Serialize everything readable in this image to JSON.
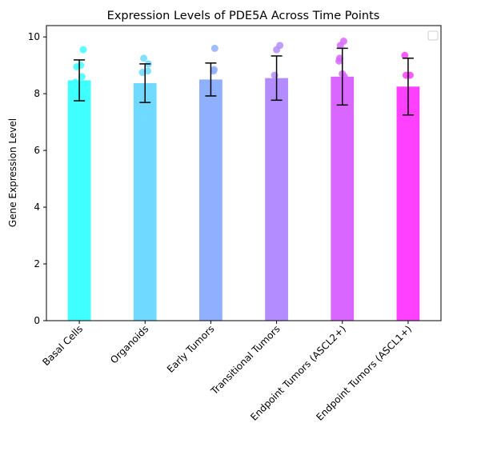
{
  "chart_data": {
    "type": "bar",
    "title": "Expression Levels of PDE5A Across Time Points",
    "xlabel": "",
    "ylabel": "Gene Expression Level",
    "ylim": [
      0,
      10.4
    ],
    "yticks": [
      0,
      2,
      4,
      6,
      8,
      10
    ],
    "grid": false,
    "legend": "top-right",
    "categories": [
      "Basal Cells",
      "Organoids",
      "Early Tumors",
      "Transitional Tumors",
      "Endpoint Tumors (ASCL2+)",
      "Endpoint Tumors (ASCL1+)"
    ],
    "values": [
      8.47,
      8.37,
      8.5,
      8.55,
      8.6,
      8.25
    ],
    "errors": [
      0.72,
      0.68,
      0.58,
      0.78,
      1.0,
      1.0
    ],
    "colors": [
      "#40ffff",
      "#70d9ff",
      "#8fb0ff",
      "#b38cff",
      "#d966ff",
      "#ff40ff"
    ],
    "points": [
      [
        9.55,
        9.0,
        8.95,
        8.6,
        8.4,
        8.0,
        6.95
      ],
      [
        9.25,
        9.05,
        8.8,
        8.75,
        8.0,
        7.65,
        7.2
      ],
      [
        9.6,
        8.85,
        8.8,
        8.3,
        8.0,
        7.6
      ],
      [
        9.7,
        9.55,
        8.65,
        8.25,
        8.1,
        7.7,
        7.6
      ],
      [
        9.85,
        9.7,
        9.25,
        9.15,
        8.7,
        8.6,
        7.95,
        7.35,
        6.8
      ],
      [
        9.35,
        8.65,
        8.65,
        7.8,
        6.75
      ]
    ],
    "point_offsets": [
      [
        0.06,
        0.02,
        -0.04,
        0.04,
        -0.06,
        0.07,
        0.04
      ],
      [
        -0.02,
        0.05,
        0.04,
        -0.04,
        0.06,
        -0.03,
        -0.03
      ],
      [
        0.06,
        0.05,
        0.04,
        -0.05,
        0.03,
        -0.05
      ],
      [
        0.05,
        0.0,
        -0.03,
        -0.04,
        0.05,
        -0.02,
        0.04
      ],
      [
        0.02,
        -0.03,
        -0.04,
        -0.05,
        0.0,
        0.03,
        -0.06,
        0.01,
        -0.04
      ],
      [
        -0.05,
        -0.03,
        0.03,
        -0.04,
        0.04
      ]
    ]
  }
}
